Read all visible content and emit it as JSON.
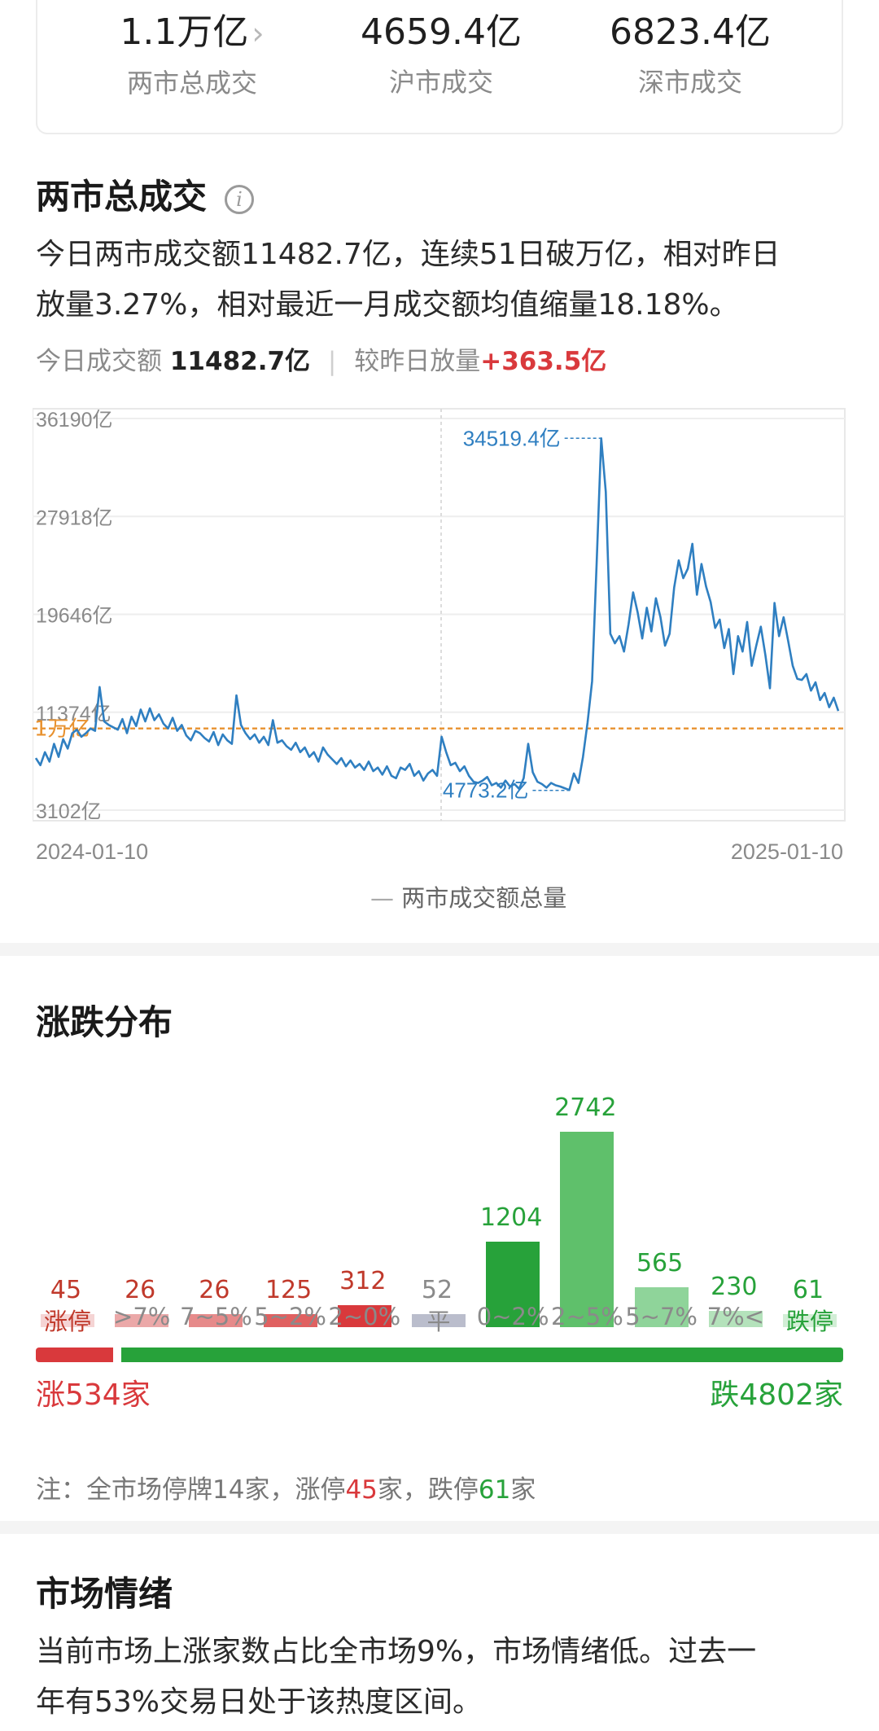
{
  "summary": {
    "total": {
      "value": "1.1万亿",
      "label": "两市总成交"
    },
    "sh": {
      "value": "4659.4亿",
      "label": "沪市成交"
    },
    "sz": {
      "value": "6823.4亿",
      "label": "深市成交"
    }
  },
  "turnover": {
    "title": "两市总成交",
    "description_1": "今日两市成交额11482.7亿，连续51日破万亿，相对昨日",
    "description_2": "放量3.27%，相对最近一月成交额均值缩量18.18%。",
    "today_label": "今日成交额",
    "today_value": "11482.7亿",
    "change_label": "较昨日放量",
    "change_value": "+363.5亿"
  },
  "chart_data": {
    "type": "line",
    "series_name": "两市成交额总量",
    "y_ticks": [
      "36190亿",
      "27918亿",
      "19646亿",
      "11374亿",
      "3102亿"
    ],
    "y_tick_values": [
      36190,
      27918,
      19646,
      11374,
      3102
    ],
    "ylim": [
      3102,
      36190
    ],
    "reference_label": "1万亿",
    "reference_value": 10000,
    "max_label": "34519.4亿",
    "max_value": 34519.4,
    "min_label": "4773.2亿",
    "min_value": 4773.2,
    "x_start": "2024-01-10",
    "x_end": "2025-01-10",
    "values": [
      7500,
      6900,
      8000,
      7200,
      8700,
      7600,
      9100,
      8300,
      9600,
      9900,
      9300,
      9600,
      10000,
      9800,
      13500,
      10600,
      10300,
      10100,
      9900,
      10800,
      9600,
      11000,
      10200,
      11600,
      10600,
      11700,
      10700,
      11200,
      10400,
      10000,
      10900,
      9800,
      10300,
      9400,
      9000,
      9800,
      9600,
      9200,
      8900,
      9700,
      8600,
      9500,
      9000,
      8700,
      12800,
      10300,
      9600,
      9100,
      9500,
      8800,
      9300,
      8600,
      10700,
      8800,
      9000,
      8500,
      8200,
      8800,
      8000,
      8400,
      7600,
      8000,
      7200,
      8400,
      7800,
      7400,
      7000,
      7500,
      6800,
      7300,
      6700,
      7000,
      6500,
      7200,
      6400,
      6700,
      6100,
      6800,
      6000,
      5800,
      6700,
      6500,
      7000,
      6000,
      6400,
      5600,
      6200,
      6500,
      6000,
      9300,
      8000,
      6900,
      7100,
      6400,
      6800,
      6000,
      5500,
      5400,
      5600,
      5900,
      5200,
      5400,
      5000,
      5600,
      5100,
      5300,
      4900,
      5800,
      8700,
      6300,
      5500,
      5300,
      5000,
      5400,
      5200,
      5100,
      4950,
      4800,
      6200,
      5400,
      7600,
      10500,
      14000,
      24000,
      34519,
      30000,
      18000,
      17200,
      17800,
      16500,
      18800,
      21500,
      19800,
      17600,
      20200,
      18200,
      21000,
      19400,
      17000,
      18000,
      21900,
      24200,
      22700,
      23500,
      25600,
      21300,
      23900,
      22000,
      20700,
      18500,
      19200,
      16800,
      18400,
      14600,
      17800,
      16500,
      19000,
      15300,
      17000,
      18600,
      16200,
      13400,
      20600,
      17800,
      19400,
      17400,
      15300,
      14200,
      14100,
      14600,
      13200,
      13900,
      12400,
      13000,
      11800,
      12600,
      11483
    ]
  },
  "distribution": {
    "title": "涨跌分布",
    "buckets": [
      {
        "label": "涨停",
        "count": "45",
        "value": 45,
        "color": "#f5d4d4",
        "numColor": "#c0392b",
        "labColor": "#c0392b"
      },
      {
        "label": ">7%",
        "count": "26",
        "value": 26,
        "color": "#eba8a8",
        "numColor": "#c0392b",
        "labColor": "#8a8a8a"
      },
      {
        "label": "7~5%",
        "count": "26",
        "value": 26,
        "color": "#e68a8a",
        "numColor": "#c0392b",
        "labColor": "#8a8a8a"
      },
      {
        "label": "5~2%",
        "count": "125",
        "value": 125,
        "color": "#e06060",
        "numColor": "#c0392b",
        "labColor": "#8a8a8a"
      },
      {
        "label": "2~0%",
        "count": "312",
        "value": 312,
        "color": "#d9393c",
        "numColor": "#c0392b",
        "labColor": "#8a8a8a"
      },
      {
        "label": "平",
        "count": "52",
        "value": 52,
        "color": "#babdcc",
        "numColor": "#8a8a8a",
        "labColor": "#8a8a8a"
      },
      {
        "label": "0~2%",
        "count": "1204",
        "value": 1204,
        "color": "#27a23a",
        "numColor": "#27a23a",
        "labColor": "#8a8a8a"
      },
      {
        "label": "2~5%",
        "count": "2742",
        "value": 2742,
        "color": "#5fc06b",
        "numColor": "#27a23a",
        "labColor": "#8a8a8a"
      },
      {
        "label": "5~7%",
        "count": "565",
        "value": 565,
        "color": "#8fd49a",
        "numColor": "#27a23a",
        "labColor": "#8a8a8a"
      },
      {
        "label": "7%<",
        "count": "230",
        "value": 230,
        "color": "#b4e2bb",
        "numColor": "#27a23a",
        "labColor": "#8a8a8a"
      },
      {
        "label": "跌停",
        "count": "61",
        "value": 61,
        "color": "#d2eed6",
        "numColor": "#27a23a",
        "labColor": "#27a23a"
      }
    ],
    "rise_label": "涨534家",
    "fall_label": "跌4802家",
    "rise_count": 534,
    "fall_count": 4802,
    "note_prefix": "注：全市场停牌14家，涨停",
    "note_limit_up": "45",
    "note_mid": "家，跌停",
    "note_limit_down": "61",
    "note_suffix": "家"
  },
  "sentiment": {
    "title": "市场情绪",
    "text_1": "当前市场上涨家数占比全市场9%，市场情绪低。过去一",
    "text_2": "年有53%交易日处于该热度区间。"
  }
}
